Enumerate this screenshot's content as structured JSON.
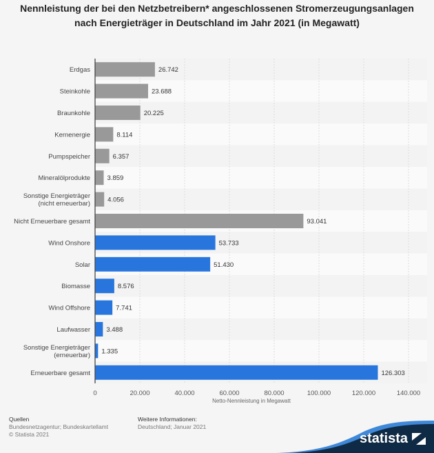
{
  "chart_data": {
    "type": "bar",
    "orientation": "horizontal",
    "title": "Nennleistung der bei den Netzbetreibern* angeschlossenen Stromerzeugungsanlagen nach Energieträger in Deutschland im Jahr 2021 (in Megawatt)",
    "xlabel": "Netto-Nennleistung in Megawatt",
    "ylabel": "",
    "xlim": [
      0,
      140000
    ],
    "xticks": [
      0,
      20000,
      40000,
      60000,
      80000,
      100000,
      120000,
      140000
    ],
    "xtick_labels": [
      "0",
      "20.000",
      "40.000",
      "60.000",
      "80.000",
      "100.000",
      "120.000",
      "140.000"
    ],
    "grid": true,
    "colors": {
      "non_renewable": "#999999",
      "renewable": "#2876dd"
    },
    "categories": [
      [
        "Erdgas"
      ],
      [
        "Steinkohle"
      ],
      [
        "Braunkohle"
      ],
      [
        "Kernenergie"
      ],
      [
        "Pumpspeicher"
      ],
      [
        "Mineralölprodukte"
      ],
      [
        "Sonstige Energieträger",
        "(nicht erneuerbar)"
      ],
      [
        "Nicht Erneuerbare gesamt"
      ],
      [
        "Wind Onshore"
      ],
      [
        "Solar"
      ],
      [
        "Biomasse"
      ],
      [
        "Wind Offshore"
      ],
      [
        "Laufwasser"
      ],
      [
        "Sonstige Energieträger",
        "(erneuerbar)"
      ],
      [
        "Erneuerbare gesamt"
      ]
    ],
    "values": [
      26742,
      23688,
      20225,
      8114,
      6357,
      3859,
      4056,
      93041,
      53733,
      51430,
      8576,
      7741,
      3488,
      1335,
      126303
    ],
    "value_labels": [
      "26.742",
      "23.688",
      "20.225",
      "8.114",
      "6.357",
      "3.859",
      "4.056",
      "93.041",
      "53.733",
      "51.430",
      "8.576",
      "7.741",
      "3.488",
      "1.335",
      "126.303"
    ],
    "groups": [
      "non_renewable",
      "non_renewable",
      "non_renewable",
      "non_renewable",
      "non_renewable",
      "non_renewable",
      "non_renewable",
      "non_renewable",
      "renewable",
      "renewable",
      "renewable",
      "renewable",
      "renewable",
      "renewable",
      "renewable"
    ]
  },
  "footer": {
    "sources_heading": "Quellen",
    "sources": "Bundesnetzagentur; Bundeskartellamt",
    "copyright": "© Statista 2021",
    "info_heading": "Weitere Informationen:",
    "info": "Deutschland; Januar 2021",
    "brand": "statista"
  }
}
